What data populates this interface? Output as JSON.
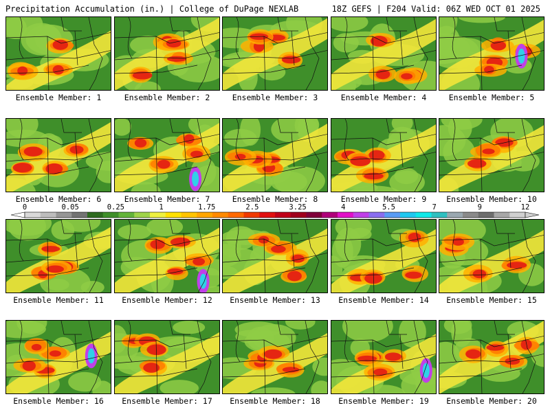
{
  "header": {
    "title_left": "Precipitation Accumulation (in.) | College of DuPage NEXLAB",
    "title_right": "18Z GEFS | F204 Valid: 06Z WED OCT 01 2025"
  },
  "panels": [
    {
      "label": "Ensemble Member: 1"
    },
    {
      "label": "Ensemble Member: 2"
    },
    {
      "label": "Ensemble Member: 3"
    },
    {
      "label": "Ensemble Member: 4"
    },
    {
      "label": "Ensemble Member: 5"
    },
    {
      "label": "Ensemble Member: 6"
    },
    {
      "label": "Ensemble Member: 7"
    },
    {
      "label": "Ensemble Member: 8"
    },
    {
      "label": "Ensemble Member: 9"
    },
    {
      "label": "Ensemble Member: 10"
    },
    {
      "label": "Ensemble Member: 11"
    },
    {
      "label": "Ensemble Member: 12"
    },
    {
      "label": "Ensemble Member: 13"
    },
    {
      "label": "Ensemble Member: 14"
    },
    {
      "label": "Ensemble Member: 15"
    },
    {
      "label": "Ensemble Member: 16"
    },
    {
      "label": "Ensemble Member: 17"
    },
    {
      "label": "Ensemble Member: 18"
    },
    {
      "label": "Ensemble Member: 19"
    },
    {
      "label": "Ensemble Member: 20"
    }
  ],
  "colorbar": {
    "tick_labels": [
      "0",
      "0.05",
      "0.25",
      "1",
      "1.75",
      "2.5",
      "3.25",
      "4",
      "5.5",
      "7",
      "9",
      "12"
    ],
    "colors": [
      "#d9d9d9",
      "#bdbdbd",
      "#969696",
      "#737373",
      "#2e6b1f",
      "#3f8f2a",
      "#63b43a",
      "#9fd44a",
      "#eef040",
      "#ffe100",
      "#ffc400",
      "#ffa600",
      "#ff8a00",
      "#ff6a00",
      "#f03a00",
      "#e01010",
      "#c0001a",
      "#a0001c",
      "#80003a",
      "#b0007a",
      "#e010c8",
      "#c040e8",
      "#8a6ef0",
      "#5a9cf5",
      "#20c8f0",
      "#10e8e8",
      "#30c0c0",
      "#9aa8b0",
      "#8a8a8a",
      "#6e6e6e",
      "#a8a8a8",
      "#d0d0d0"
    ]
  }
}
